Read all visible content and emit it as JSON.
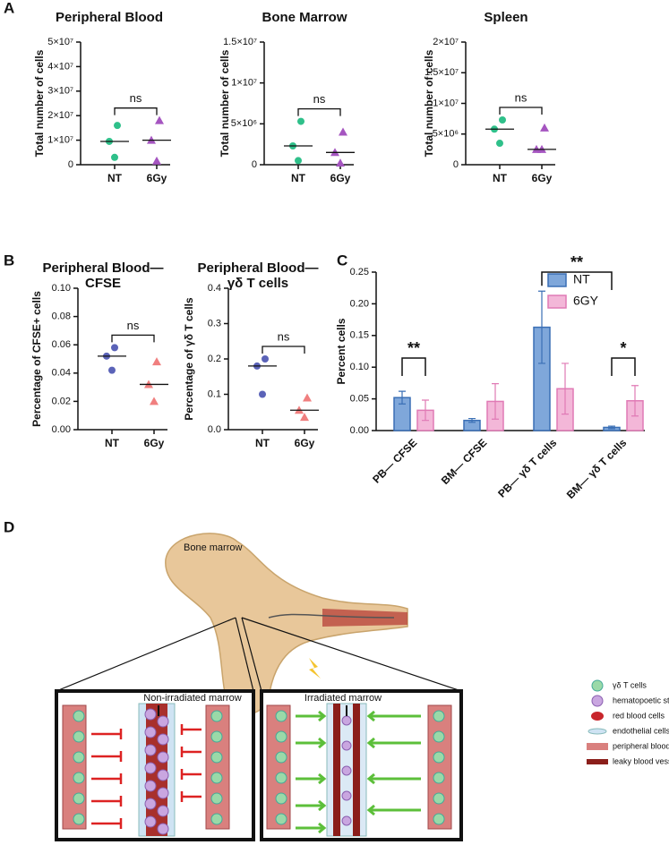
{
  "panel_labels": [
    "A",
    "B",
    "C",
    "D"
  ],
  "chart_data": [
    {
      "type": "scatter",
      "title": "Peripheral Blood",
      "y_label": "Total number of cells",
      "categories": [
        "NT",
        "6Gy"
      ],
      "colors": [
        "#2fc08a",
        "#a555c0"
      ],
      "markers": [
        "circle",
        "triangle"
      ],
      "values": [
        [
          16000000,
          9500000,
          3000000
        ],
        [
          18000000,
          10000000,
          1500000
        ]
      ],
      "medians": [
        9500000,
        10000000
      ],
      "ylim": [
        0,
        50000000
      ],
      "yticks": [
        0,
        {
          "value": 10000000,
          "label": "1×10⁷"
        },
        {
          "value": 20000000,
          "label": "2×10⁷"
        },
        {
          "value": 30000000,
          "label": "3×10⁷"
        },
        {
          "value": 40000000,
          "label": "4×10⁷"
        },
        {
          "value": 50000000,
          "label": "5×10⁷"
        }
      ],
      "annotations": [
        "ns"
      ]
    },
    {
      "type": "scatter",
      "title": "Bone Marrow",
      "y_label": "Total number of cells",
      "categories": [
        "NT",
        "6Gy"
      ],
      "colors": [
        "#2fc08a",
        "#a555c0"
      ],
      "markers": [
        "circle",
        "triangle"
      ],
      "values": [
        [
          5300000,
          2300000,
          500000
        ],
        [
          4000000,
          1500000,
          200000
        ]
      ],
      "medians": [
        2300000,
        1500000
      ],
      "ylim": [
        0,
        15000000
      ],
      "yticks": [
        0,
        {
          "value": 5000000,
          "label": "5×10⁶"
        },
        {
          "value": 10000000,
          "label": "1×10⁷"
        },
        {
          "value": 15000000,
          "label": "1.5×10⁷"
        }
      ],
      "annotations": [
        "ns"
      ]
    },
    {
      "type": "scatter",
      "title": "Spleen",
      "y_label": "Total number of cells",
      "categories": [
        "NT",
        "6Gy"
      ],
      "colors": [
        "#2fc08a",
        "#a555c0"
      ],
      "markers": [
        "circle",
        "triangle"
      ],
      "values": [
        [
          7300000,
          5800000,
          3500000
        ],
        [
          6000000,
          2500000,
          2500000
        ]
      ],
      "medians": [
        5800000,
        2500000
      ],
      "ylim": [
        0,
        20000000
      ],
      "yticks": [
        0,
        {
          "value": 5000000,
          "label": "5×10⁶"
        },
        {
          "value": 10000000,
          "label": "1×10⁷"
        },
        {
          "value": 15000000,
          "label": "1.5×10⁷"
        },
        {
          "value": 20000000,
          "label": "2×10⁷"
        }
      ],
      "annotations": [
        "ns"
      ]
    },
    {
      "type": "scatter",
      "title": [
        "Peripheral Blood—",
        "CFSE"
      ],
      "y_label": "Percentage of CFSE+ cells",
      "categories": [
        "NT",
        "6Gy"
      ],
      "colors": [
        "#5b63b8",
        "#f07f7f"
      ],
      "markers": [
        "circle",
        "triangle"
      ],
      "values": [
        [
          0.058,
          0.052,
          0.042
        ],
        [
          0.048,
          0.032,
          0.02
        ]
      ],
      "medians": [
        0.052,
        0.032
      ],
      "ylim": [
        0,
        0.1
      ],
      "yticks": [
        {
          "value": 0,
          "label": "0.00"
        },
        {
          "value": 0.02,
          "label": "0.02"
        },
        {
          "value": 0.04,
          "label": "0.04"
        },
        {
          "value": 0.06,
          "label": "0.06"
        },
        {
          "value": 0.08,
          "label": "0.08"
        },
        {
          "value": 0.1,
          "label": "0.10"
        }
      ],
      "annotations": [
        "ns"
      ]
    },
    {
      "type": "scatter",
      "title": [
        "Peripheral Blood—",
        "γδ T cells"
      ],
      "y_label": "Percentage of γδ T cells",
      "categories": [
        "NT",
        "6Gy"
      ],
      "colors": [
        "#5b63b8",
        "#f07f7f"
      ],
      "markers": [
        "circle",
        "triangle"
      ],
      "values": [
        [
          0.2,
          0.18,
          0.1
        ],
        [
          0.09,
          0.055,
          0.035
        ]
      ],
      "medians": [
        0.18,
        0.055
      ],
      "ylim": [
        0,
        0.4
      ],
      "yticks": [
        {
          "value": 0,
          "label": "0.0"
        },
        0.1,
        0.2,
        0.3,
        0.4
      ],
      "annotations": [
        "ns"
      ]
    },
    {
      "type": "bar",
      "y_label": "Percent cells",
      "categories": [
        "PB— CFSE",
        "BM— CFSE",
        "PB— γδ T cells",
        "BM— γδ T cells"
      ],
      "series": [
        {
          "name": "NT",
          "color": "#7fa7da",
          "edge": "#3a6fb5",
          "values": [
            0.052,
            0.016,
            0.163,
            0.005
          ],
          "errors": [
            0.01,
            0.003,
            0.057,
            0.002
          ]
        },
        {
          "name": "6GY",
          "color": "#f3b7d8",
          "edge": "#e07ab5",
          "values": [
            0.032,
            0.046,
            0.066,
            0.047
          ],
          "errors": [
            0.016,
            0.028,
            0.04,
            0.024
          ]
        }
      ],
      "ylim": [
        0,
        0.25
      ],
      "yticks": [
        {
          "value": 0,
          "label": "0.00"
        },
        0.05,
        {
          "value": 0.1,
          "label": "0.10"
        },
        0.15,
        {
          "value": 0.2,
          "label": "0.20"
        },
        0.25
      ],
      "annotations": [
        "**",
        "**",
        "*"
      ]
    }
  ],
  "diagram": {
    "bone_label": "Bone marrow",
    "left_box": "Non-irradiated marrow",
    "right_box": "Irradiated marrow",
    "legend": [
      "γδ T cells",
      "hematopoetic stem cells",
      "red blood cells",
      "endothelial cells",
      "peripheral blood vessel",
      "leaky blood vessel"
    ]
  }
}
